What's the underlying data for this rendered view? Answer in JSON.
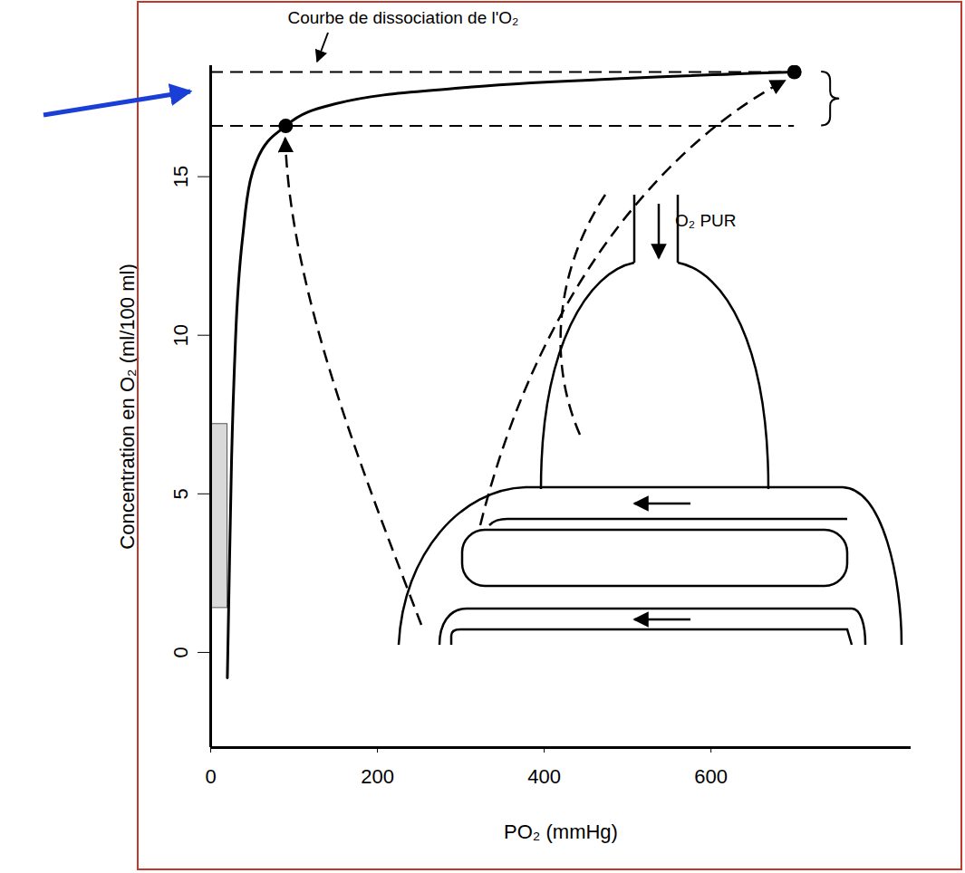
{
  "chart_data": {
    "type": "line",
    "color": "#000000",
    "line_style": "solid",
    "annotations": {
      "curve_label": "Courbe de dissociation de l'O₂",
      "inflow_label": "O₂ PUR"
    },
    "x_label": "PO₂ (mmHg)",
    "y_label": "Concentration en O₂ (ml/100 ml)",
    "x": [
      20,
      22,
      25,
      30,
      40,
      55,
      90,
      150,
      300,
      500,
      700
    ],
    "values": [
      -0.8,
      2,
      6,
      10,
      13.5,
      15.5,
      16.6,
      17.3,
      17.8,
      18.1,
      18.3
    ],
    "points": {
      "x": [
        90,
        700
      ],
      "y": [
        16.6,
        18.3
      ]
    },
    "reference_lines": [
      16.6,
      18.3
    ],
    "shaded_band": [
      1.4,
      7.2
    ],
    "xlim": [
      0,
      840
    ],
    "ylim": [
      -3,
      18.5
    ],
    "xticks": [
      0,
      200,
      400,
      600
    ],
    "yticks": [
      0,
      5,
      10,
      15
    ],
    "grid": false
  }
}
